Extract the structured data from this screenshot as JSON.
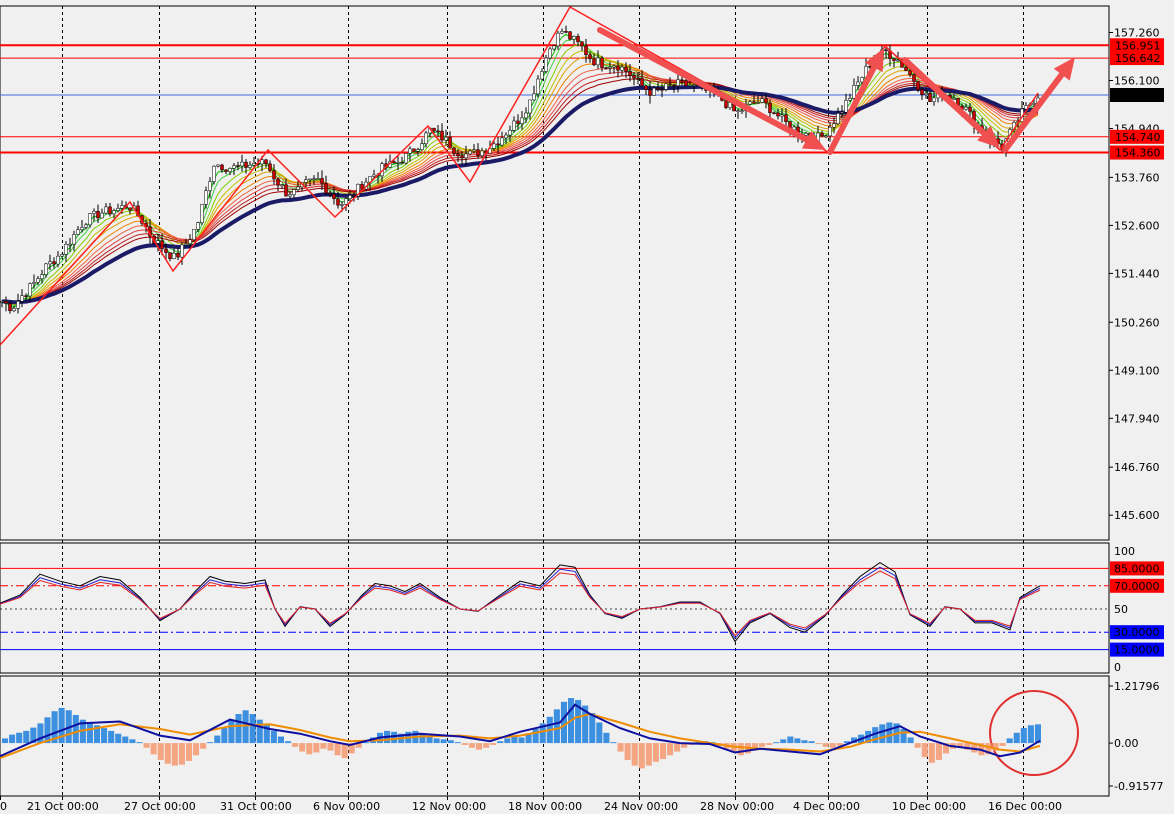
{
  "chart_data": {
    "type": "candlestick",
    "main_panel": {
      "ylim": [
        145.0,
        157.9
      ],
      "y_ticks": [
        "157.260",
        "156.100",
        "154.940",
        "153.760",
        "152.600",
        "151.440",
        "150.260",
        "149.100",
        "147.940",
        "146.760",
        "145.600"
      ],
      "price_levels": [
        {
          "label": "156.951",
          "value": 156.951,
          "box_color": "#ff0000",
          "line_color": "#ff0000",
          "line_weight": "thick"
        },
        {
          "label": "156.642",
          "value": 156.642,
          "box_color": "#ff0000",
          "line_color": "#ff0000",
          "line_weight": "thin"
        },
        {
          "label": "155.750",
          "value": 155.75,
          "box_color": "#000000",
          "line_color": "#4169e1",
          "line_weight": "thin"
        },
        {
          "label": "154.740",
          "value": 154.74,
          "box_color": "#ff0000",
          "line_color": "#ff0000",
          "line_weight": "thin"
        },
        {
          "label": "154.360",
          "value": 154.36,
          "box_color": "#ff0000",
          "line_color": "#ff0000",
          "line_weight": "thick"
        }
      ],
      "approx_close_path": [
        [
          0,
          150.8
        ],
        [
          12,
          150.6
        ],
        [
          22,
          150.9
        ],
        [
          34,
          151.2
        ],
        [
          46,
          151.6
        ],
        [
          60,
          151.9
        ],
        [
          72,
          152.3
        ],
        [
          84,
          152.7
        ],
        [
          100,
          152.9
        ],
        [
          118,
          153.0
        ],
        [
          128,
          153.1
        ],
        [
          140,
          152.8
        ],
        [
          152,
          152.3
        ],
        [
          165,
          152.0
        ],
        [
          175,
          151.8
        ],
        [
          187,
          152.2
        ],
        [
          197,
          152.6
        ],
        [
          206,
          153.4
        ],
        [
          214,
          154.1
        ],
        [
          228,
          154.0
        ],
        [
          240,
          154.0
        ],
        [
          254,
          154.1
        ],
        [
          266,
          154.1
        ],
        [
          276,
          153.7
        ],
        [
          286,
          153.4
        ],
        [
          296,
          153.4
        ],
        [
          306,
          153.6
        ],
        [
          318,
          153.7
        ],
        [
          330,
          153.4
        ],
        [
          340,
          153.1
        ],
        [
          352,
          153.3
        ],
        [
          362,
          153.6
        ],
        [
          372,
          153.8
        ],
        [
          384,
          154.0
        ],
        [
          396,
          154.1
        ],
        [
          408,
          154.3
        ],
        [
          420,
          154.6
        ],
        [
          430,
          154.9
        ],
        [
          444,
          154.7
        ],
        [
          456,
          154.4
        ],
        [
          468,
          154.3
        ],
        [
          482,
          154.4
        ],
        [
          496,
          154.6
        ],
        [
          508,
          154.9
        ],
        [
          520,
          155.2
        ],
        [
          530,
          155.6
        ],
        [
          540,
          156.3
        ],
        [
          552,
          157.0
        ],
        [
          562,
          157.3
        ],
        [
          572,
          157.1
        ],
        [
          582,
          156.9
        ],
        [
          592,
          156.6
        ],
        [
          604,
          156.5
        ],
        [
          616,
          156.5
        ],
        [
          628,
          156.3
        ],
        [
          640,
          156.0
        ],
        [
          652,
          155.8
        ],
        [
          664,
          155.9
        ],
        [
          676,
          156.0
        ],
        [
          688,
          156.0
        ],
        [
          700,
          155.9
        ],
        [
          712,
          155.8
        ],
        [
          724,
          155.6
        ],
        [
          736,
          155.3
        ],
        [
          748,
          155.5
        ],
        [
          760,
          155.6
        ],
        [
          772,
          155.4
        ],
        [
          784,
          155.1
        ],
        [
          796,
          154.9
        ],
        [
          808,
          154.8
        ],
        [
          820,
          154.7
        ],
        [
          830,
          155.0
        ],
        [
          842,
          155.4
        ],
        [
          852,
          155.8
        ],
        [
          862,
          156.2
        ],
        [
          872,
          156.6
        ],
        [
          886,
          156.8
        ],
        [
          898,
          156.6
        ],
        [
          908,
          156.3
        ],
        [
          918,
          156.0
        ],
        [
          930,
          155.6
        ],
        [
          942,
          155.8
        ],
        [
          954,
          155.7
        ],
        [
          966,
          155.4
        ],
        [
          978,
          155.0
        ],
        [
          990,
          154.7
        ],
        [
          1002,
          154.5
        ],
        [
          1012,
          154.9
        ],
        [
          1022,
          155.3
        ],
        [
          1032,
          155.6
        ],
        [
          1040,
          155.8
        ]
      ]
    },
    "stochastic_panel": {
      "ylim": [
        0,
        100
      ],
      "ticks": [
        "100",
        "50",
        "0"
      ],
      "levels": [
        {
          "label": "85.0000",
          "value": 85,
          "box_color": "#ff0000",
          "line_color": "#ff0000",
          "style": "solid"
        },
        {
          "label": "70.0000",
          "value": 70,
          "box_color": "#ff0000",
          "line_color": "#ff0000",
          "style": "dashdot"
        },
        {
          "label": "30.0000",
          "value": 30,
          "box_color": "#0000ff",
          "line_color": "#0000ff",
          "style": "dashdot"
        },
        {
          "label": "15.0000",
          "value": 15,
          "box_color": "#0000ff",
          "line_color": "#0000ff",
          "style": "solid"
        }
      ],
      "approx_path": [
        [
          0,
          55
        ],
        [
          20,
          62
        ],
        [
          40,
          80
        ],
        [
          60,
          74
        ],
        [
          80,
          70
        ],
        [
          100,
          78
        ],
        [
          120,
          75
        ],
        [
          140,
          60
        ],
        [
          160,
          40
        ],
        [
          180,
          50
        ],
        [
          195,
          65
        ],
        [
          210,
          78
        ],
        [
          225,
          74
        ],
        [
          245,
          72
        ],
        [
          265,
          75
        ],
        [
          275,
          50
        ],
        [
          285,
          35
        ],
        [
          300,
          52
        ],
        [
          315,
          50
        ],
        [
          330,
          35
        ],
        [
          345,
          45
        ],
        [
          362,
          62
        ],
        [
          375,
          72
        ],
        [
          390,
          70
        ],
        [
          405,
          65
        ],
        [
          420,
          72
        ],
        [
          440,
          60
        ],
        [
          460,
          50
        ],
        [
          478,
          48
        ],
        [
          500,
          62
        ],
        [
          520,
          74
        ],
        [
          540,
          70
        ],
        [
          560,
          88
        ],
        [
          575,
          86
        ],
        [
          590,
          62
        ],
        [
          605,
          46
        ],
        [
          622,
          42
        ],
        [
          640,
          50
        ],
        [
          660,
          52
        ],
        [
          680,
          56
        ],
        [
          700,
          56
        ],
        [
          720,
          46
        ],
        [
          735,
          22
        ],
        [
          750,
          38
        ],
        [
          770,
          46
        ],
        [
          790,
          34
        ],
        [
          805,
          30
        ],
        [
          825,
          44
        ],
        [
          842,
          62
        ],
        [
          860,
          78
        ],
        [
          880,
          90
        ],
        [
          895,
          82
        ],
        [
          910,
          45
        ],
        [
          930,
          35
        ],
        [
          945,
          52
        ],
        [
          960,
          50
        ],
        [
          975,
          38
        ],
        [
          992,
          38
        ],
        [
          1010,
          32
        ],
        [
          1020,
          60
        ],
        [
          1040,
          70
        ]
      ]
    },
    "macd_panel": {
      "ylim": [
        -0.91577,
        1.21796
      ],
      "ticks": [
        "1.21796",
        "0.00",
        "-0.91577"
      ],
      "histogram": [
        0.1,
        0.18,
        0.22,
        0.26,
        0.33,
        0.42,
        0.55,
        0.68,
        0.75,
        0.7,
        0.6,
        0.5,
        0.44,
        0.38,
        0.32,
        0.26,
        0.2,
        0.14,
        0.08,
        0.02,
        -0.1,
        -0.24,
        -0.36,
        -0.44,
        -0.48,
        -0.46,
        -0.38,
        -0.26,
        -0.12,
        0.02,
        0.16,
        0.32,
        0.48,
        0.62,
        0.7,
        0.62,
        0.5,
        0.38,
        0.26,
        0.14,
        0.04,
        -0.08,
        -0.18,
        -0.24,
        -0.2,
        -0.12,
        -0.16,
        -0.26,
        -0.32,
        -0.22,
        -0.1,
        0.02,
        0.12,
        0.22,
        0.26,
        0.24,
        0.2,
        0.24,
        0.26,
        0.2,
        0.14,
        0.1,
        0.08,
        0.06,
        0.02,
        -0.04,
        -0.1,
        -0.14,
        -0.1,
        -0.04,
        0.04,
        0.1,
        0.16,
        0.12,
        0.2,
        0.3,
        0.42,
        0.56,
        0.72,
        0.88,
        0.96,
        0.92,
        0.8,
        0.64,
        0.44,
        0.22,
        0.02,
        -0.18,
        -0.36,
        -0.48,
        -0.54,
        -0.48,
        -0.4,
        -0.34,
        -0.26,
        -0.18,
        -0.1,
        -0.04,
        0.02,
        0.04,
        0.02,
        -0.06,
        -0.12,
        -0.2,
        -0.26,
        -0.22,
        -0.16,
        -0.08,
        -0.04,
        0.02,
        0.08,
        0.14,
        0.1,
        0.06,
        0.04,
        -0.02,
        -0.08,
        -0.1,
        -0.06,
        0.04,
        0.12,
        0.18,
        0.26,
        0.34,
        0.4,
        0.44,
        0.42,
        0.3,
        0.12,
        -0.1,
        -0.3,
        -0.42,
        -0.36,
        -0.22,
        -0.12,
        -0.08,
        -0.14,
        -0.2,
        -0.26,
        -0.24,
        -0.16,
        -0.06,
        0.1,
        0.22,
        0.32,
        0.38,
        0.4
      ],
      "macd_line": [
        [
          0,
          -0.28
        ],
        [
          40,
          0.1
        ],
        [
          80,
          0.42
        ],
        [
          120,
          0.46
        ],
        [
          160,
          0.16
        ],
        [
          190,
          0.06
        ],
        [
          230,
          0.5
        ],
        [
          270,
          0.3
        ],
        [
          300,
          0.2
        ],
        [
          330,
          0.04
        ],
        [
          350,
          -0.04
        ],
        [
          380,
          0.12
        ],
        [
          420,
          0.2
        ],
        [
          460,
          0.14
        ],
        [
          490,
          0.04
        ],
        [
          520,
          0.24
        ],
        [
          560,
          0.44
        ],
        [
          575,
          0.82
        ],
        [
          590,
          0.62
        ],
        [
          620,
          0.32
        ],
        [
          650,
          0.1
        ],
        [
          680,
          0.0
        ],
        [
          710,
          -0.02
        ],
        [
          735,
          -0.2
        ],
        [
          760,
          -0.12
        ],
        [
          790,
          -0.18
        ],
        [
          820,
          -0.24
        ],
        [
          850,
          0.0
        ],
        [
          875,
          0.2
        ],
        [
          900,
          0.36
        ],
        [
          920,
          0.14
        ],
        [
          950,
          -0.06
        ],
        [
          980,
          -0.14
        ],
        [
          1000,
          -0.28
        ],
        [
          1020,
          -0.2
        ],
        [
          1040,
          0.05
        ]
      ],
      "signal_line": [
        [
          0,
          -0.32
        ],
        [
          40,
          0.0
        ],
        [
          80,
          0.26
        ],
        [
          120,
          0.4
        ],
        [
          160,
          0.3
        ],
        [
          190,
          0.18
        ],
        [
          230,
          0.36
        ],
        [
          270,
          0.4
        ],
        [
          300,
          0.28
        ],
        [
          330,
          0.12
        ],
        [
          350,
          0.04
        ],
        [
          380,
          0.06
        ],
        [
          420,
          0.14
        ],
        [
          460,
          0.16
        ],
        [
          490,
          0.1
        ],
        [
          520,
          0.16
        ],
        [
          560,
          0.32
        ],
        [
          575,
          0.54
        ],
        [
          590,
          0.62
        ],
        [
          620,
          0.44
        ],
        [
          650,
          0.24
        ],
        [
          680,
          0.1
        ],
        [
          710,
          0.0
        ],
        [
          735,
          -0.08
        ],
        [
          760,
          -0.12
        ],
        [
          790,
          -0.14
        ],
        [
          820,
          -0.18
        ],
        [
          850,
          -0.08
        ],
        [
          875,
          0.08
        ],
        [
          900,
          0.22
        ],
        [
          920,
          0.24
        ],
        [
          950,
          0.1
        ],
        [
          980,
          -0.04
        ],
        [
          1000,
          -0.14
        ],
        [
          1020,
          -0.18
        ],
        [
          1040,
          -0.06
        ]
      ]
    },
    "x_labels": [
      {
        "text": "0",
        "x": 0
      },
      {
        "text": "21 Oct 00:00",
        "x": 62
      },
      {
        "text": "27 Oct 00:00",
        "x": 159
      },
      {
        "text": "31 Oct 00:00",
        "x": 255
      },
      {
        "text": "6 Nov 00:00",
        "x": 348
      },
      {
        "text": "12 Nov 00:00",
        "x": 447
      },
      {
        "text": "18 Nov 00:00",
        "x": 543
      },
      {
        "text": "24 Nov 00:00",
        "x": 639
      },
      {
        "text": "28 Nov 00:00",
        "x": 735
      },
      {
        "text": "4 Dec 00:00",
        "x": 828
      },
      {
        "text": "10 Dec 00:00",
        "x": 927
      },
      {
        "text": "16 Dec 00:00",
        "x": 1023
      }
    ]
  }
}
